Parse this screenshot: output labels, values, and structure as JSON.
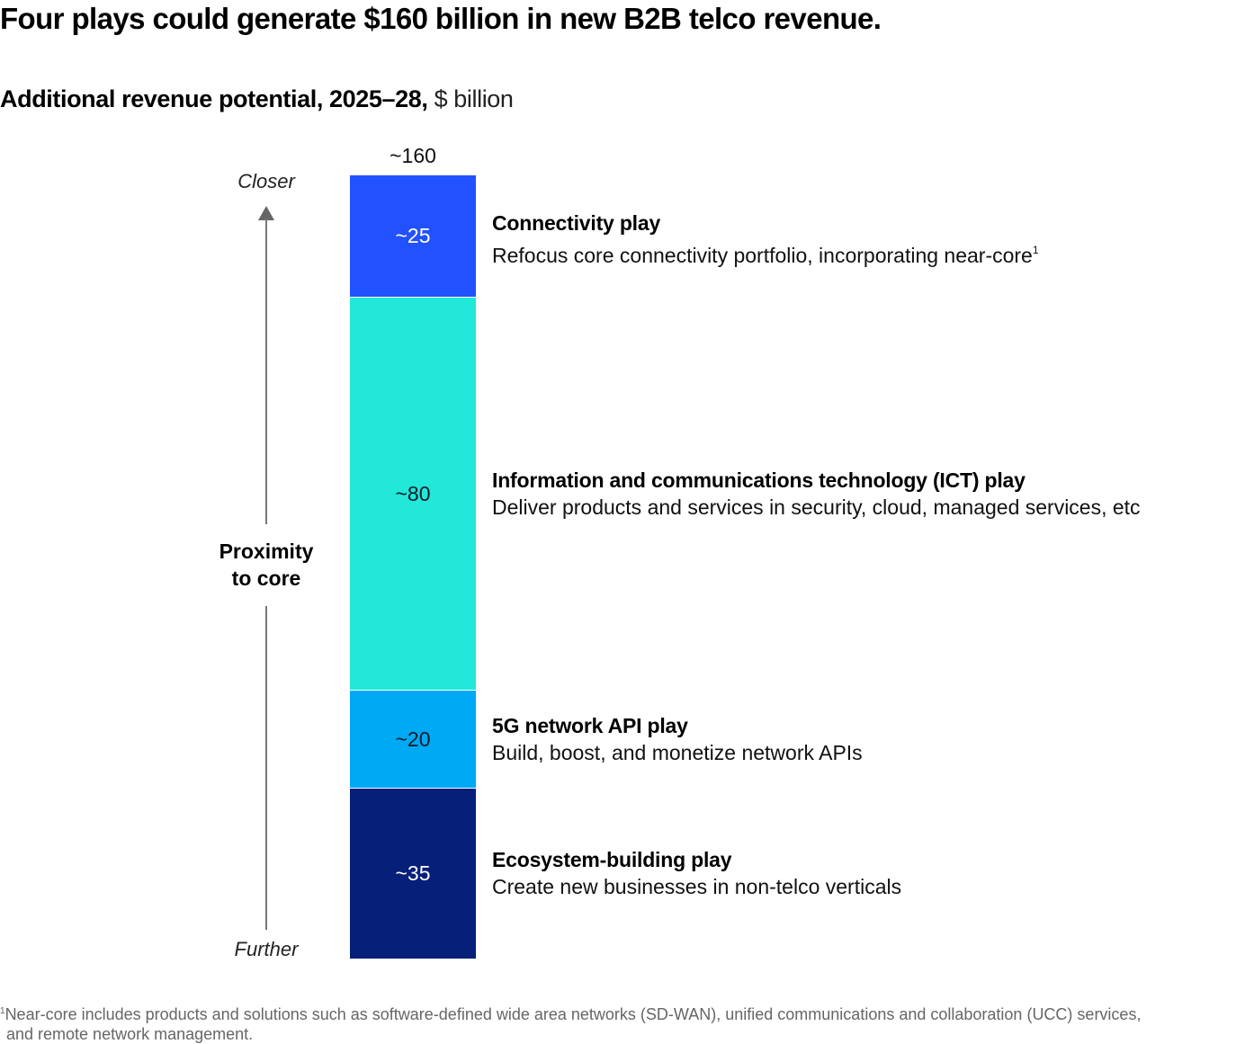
{
  "title": "Four plays could generate $160 billion in new B2B telco revenue.",
  "subtitle": {
    "bold": "Additional revenue potential, 2025–28,",
    "unit": " $ billion"
  },
  "axis": {
    "top_label": "Closer",
    "bottom_label": "Further",
    "label_line1": "Proximity",
    "label_line2": "to core",
    "color": "#777777"
  },
  "chart_data": {
    "type": "bar",
    "stacked": true,
    "title": "Four plays could generate $160 billion in new B2B telco revenue.",
    "subtitle": "Additional revenue potential, 2025–28, $ billion",
    "xlabel": "",
    "ylabel": "Proximity to core (Closer → Further)",
    "total": 160,
    "total_label": "~160",
    "categories": [
      "Additional revenue potential"
    ],
    "series": [
      {
        "name": "Connectivity play",
        "value": 25,
        "label": "~25",
        "description": "Refocus core connectivity portfolio, incorporating near-core",
        "footnote_ref": "1",
        "color": "#2251FF",
        "text_color": "#FFFFFF"
      },
      {
        "name": "Information and communications technology (ICT) play",
        "value": 80,
        "label": "~80",
        "description": "Deliver products and services in security, cloud, managed services, etc",
        "footnote_ref": "",
        "color": "#21E8D9",
        "text_color": "#051C2C"
      },
      {
        "name": "5G network API play",
        "value": 20,
        "label": "~20",
        "description": "Build, boost, and monetize network APIs",
        "footnote_ref": "",
        "color": "#00A9F4",
        "text_color": "#051C2C"
      },
      {
        "name": "Ecosystem-building play",
        "value": 35,
        "label": "~35",
        "description": "Create new businesses in non-telco verticals",
        "footnote_ref": "",
        "color": "#061F79",
        "text_color": "#FFFFFF"
      }
    ],
    "legend": "right"
  },
  "footnote": {
    "marker": "1",
    "line1": "Near-core includes products and solutions such as software-defined wide area networks (SD-WAN), unified communications and collaboration (UCC) services,",
    "line2": "and remote network management."
  }
}
